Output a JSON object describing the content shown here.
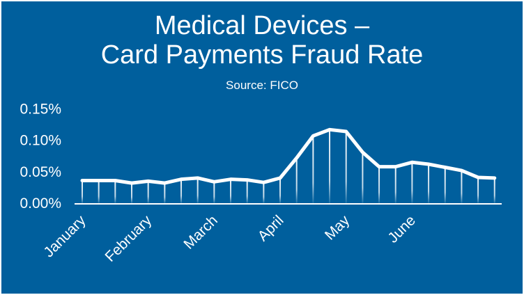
{
  "colors": {
    "background": "#005f9d",
    "line": "#ffffff"
  },
  "chart_data": {
    "type": "line",
    "title": "Medical Devices –\nCard Payments Fraud Rate",
    "title_lines": [
      "Medical Devices –",
      "Card Payments Fraud Rate"
    ],
    "subtitle": "Source: FICO",
    "ylim": [
      0,
      0.15
    ],
    "yticks": [
      0,
      0.05,
      0.1,
      0.15
    ],
    "ytick_labels": [
      "0.00%",
      "0.05%",
      "0.10%",
      "0.15%"
    ],
    "xtick_labels": [
      {
        "index": 0,
        "label": "January"
      },
      {
        "index": 4,
        "label": "February"
      },
      {
        "index": 8,
        "label": "March"
      },
      {
        "index": 12,
        "label": "April"
      },
      {
        "index": 16,
        "label": "May"
      },
      {
        "index": 20,
        "label": "June"
      }
    ],
    "grid": false,
    "values": [
      0.036,
      0.036,
      0.036,
      0.032,
      0.035,
      0.032,
      0.038,
      0.04,
      0.034,
      0.038,
      0.037,
      0.033,
      0.04,
      0.072,
      0.107,
      0.117,
      0.114,
      0.081,
      0.058,
      0.058,
      0.065,
      0.062,
      0.057,
      0.052,
      0.041,
      0.04
    ]
  }
}
